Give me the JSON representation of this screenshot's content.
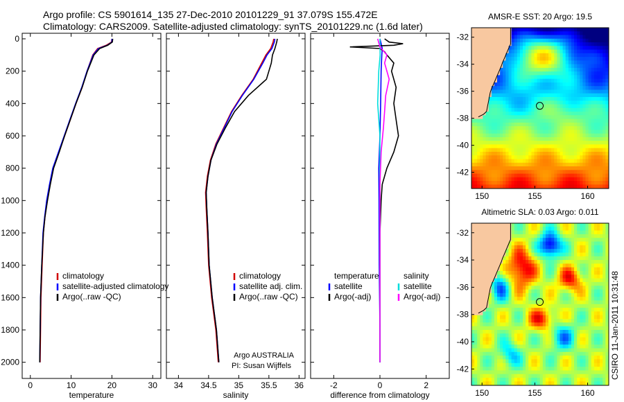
{
  "header": {
    "line1": "Argo profile: CS 5901614_135 27-Dec-2010 20101229_91 37.079S 155.472E",
    "line2": "Climatology: CARS2009. Satellite-adjusted climatology: synTS_20101229.nc (1.6d later)"
  },
  "side_label": "CSIRO 11-Jan-2011 10:31:48",
  "colors": {
    "climatology": "#d00000",
    "satellite": "#0000ff",
    "argo": "#000000",
    "argo_sal_diff": "#ff00ff",
    "sat_sal_diff": "#00dddd",
    "land": "#f8c8a0"
  },
  "chart_data": [
    {
      "type": "line",
      "id": "temperature",
      "xlabel": "temperature",
      "xlim": [
        -2,
        32
      ],
      "xticks": [
        0,
        10,
        20,
        30
      ],
      "ylim": [
        0,
        2100
      ],
      "yticks": [
        0,
        200,
        400,
        600,
        800,
        1000,
        1200,
        1400,
        1600,
        1800,
        2000
      ],
      "y_reversed": true,
      "legend": [
        "climatology",
        "satellite-adjusted climatology",
        "Argo(..raw -QC)"
      ],
      "series": [
        {
          "name": "climatology",
          "color": "#d00000",
          "x": [
            20,
            19.9,
            18.6,
            16.5,
            15.3,
            13.9,
            12.7,
            11.2,
            9.8,
            8.4,
            7.0,
            5.6,
            4.8,
            4.1,
            3.6,
            3.2,
            2.9,
            2.6,
            2.4
          ],
          "y": [
            0,
            20,
            40,
            60,
            100,
            200,
            300,
            400,
            500,
            600,
            700,
            800,
            900,
            1000,
            1100,
            1200,
            1400,
            1600,
            2000
          ]
        },
        {
          "name": "satellite-adjusted climatology",
          "color": "#0000ff",
          "x": [
            20,
            20,
            18.9,
            16.7,
            15.4,
            13.9,
            12.6,
            11.1,
            9.7,
            8.3,
            6.9,
            5.5,
            4.7,
            4.0,
            3.5,
            3.1,
            2.8,
            2.5,
            2.3
          ],
          "y": [
            0,
            20,
            40,
            60,
            100,
            200,
            300,
            400,
            500,
            600,
            700,
            800,
            900,
            1000,
            1100,
            1200,
            1400,
            1600,
            2000
          ]
        },
        {
          "name": "Argo(..raw -QC)",
          "color": "#000000",
          "x": [
            20.2,
            20.1,
            19.0,
            17.0,
            15.6,
            14.0,
            12.7,
            11.2,
            9.8,
            8.4,
            7.1,
            5.7,
            4.9,
            4.2,
            3.6,
            3.2,
            2.8,
            2.5,
            2.3
          ],
          "y": [
            0,
            20,
            40,
            60,
            100,
            200,
            300,
            400,
            500,
            600,
            700,
            800,
            900,
            1000,
            1100,
            1200,
            1400,
            1600,
            2000
          ]
        }
      ]
    },
    {
      "type": "line",
      "id": "salinity",
      "xlabel": "salinity",
      "xlim": [
        33.8,
        36.1
      ],
      "xticks": [
        34,
        34.5,
        35,
        35.5,
        36
      ],
      "ylim": [
        0,
        2100
      ],
      "y_reversed": true,
      "legend": [
        "climatology",
        "satellite adj. clim.",
        "Argo(..raw -QC)"
      ],
      "annotation": [
        "Argo AUSTRALIA",
        "PI: Susan Wijffels"
      ],
      "series": [
        {
          "name": "climatology",
          "color": "#d00000",
          "x": [
            35.58,
            35.57,
            35.53,
            35.45,
            35.38,
            35.24,
            35.05,
            34.88,
            34.75,
            34.62,
            34.53,
            34.48,
            34.45,
            34.46,
            34.48,
            34.5,
            34.55,
            34.62,
            34.66
          ],
          "y": [
            0,
            20,
            60,
            100,
            150,
            250,
            350,
            450,
            550,
            650,
            750,
            850,
            950,
            1050,
            1200,
            1400,
            1600,
            1800,
            2000
          ]
        },
        {
          "name": "satellite adj. clim.",
          "color": "#0000ff",
          "x": [
            35.6,
            35.59,
            35.55,
            35.47,
            35.4,
            35.25,
            35.06,
            34.89,
            34.76,
            34.63,
            34.54,
            34.49,
            34.46,
            34.47,
            34.49,
            34.51,
            34.56,
            34.63,
            34.67
          ],
          "y": [
            0,
            20,
            60,
            100,
            150,
            250,
            350,
            450,
            550,
            650,
            750,
            850,
            950,
            1050,
            1200,
            1400,
            1600,
            1800,
            2000
          ]
        },
        {
          "name": "Argo(..raw -QC)",
          "color": "#000000",
          "x": [
            35.64,
            35.63,
            35.6,
            35.56,
            35.54,
            35.46,
            35.16,
            34.93,
            34.78,
            34.64,
            34.54,
            34.49,
            34.46,
            34.47,
            34.49,
            34.51,
            34.56,
            34.63,
            34.67
          ],
          "y": [
            0,
            20,
            60,
            100,
            150,
            250,
            350,
            450,
            550,
            650,
            750,
            850,
            950,
            1050,
            1200,
            1400,
            1600,
            1800,
            2000
          ]
        }
      ]
    },
    {
      "type": "line",
      "id": "difference",
      "xlabel": "difference from climatology",
      "xlim": [
        -3,
        3
      ],
      "xticks": [
        -2,
        0,
        2
      ],
      "ylim": [
        0,
        2100
      ],
      "y_reversed": true,
      "legend_columns": [
        {
          "heading": "temperature",
          "items": [
            "satellite",
            "Argo(-adj)"
          ]
        },
        {
          "heading": "salinity",
          "items": [
            "satellite",
            "Argo(-adj)"
          ]
        }
      ],
      "series": [
        {
          "name": "temperature satellite",
          "color": "#0000ff",
          "x": [
            0,
            0.05,
            0.1,
            0.08,
            0.05,
            0.03,
            0,
            -0.05,
            -0.04,
            -0.03,
            0,
            0
          ],
          "y": [
            0,
            30,
            60,
            100,
            200,
            400,
            600,
            800,
            1000,
            1400,
            1800,
            2000
          ]
        },
        {
          "name": "temperature Argo(-adj)",
          "color": "#000000",
          "x": [
            0.2,
            0.4,
            1.0,
            0.6,
            -1.3,
            0.0,
            0.2,
            0.3,
            0.6,
            0.5,
            0.7,
            0.6,
            0.7,
            0.8,
            0.6,
            0.3,
            0.1,
            0.05,
            0.0,
            0.0
          ],
          "y": [
            0,
            20,
            30,
            40,
            50,
            60,
            80,
            100,
            150,
            200,
            300,
            400,
            500,
            600,
            700,
            800,
            900,
            1000,
            1200,
            2000
          ]
        },
        {
          "name": "salinity satellite",
          "color": "#00dddd",
          "x": [
            0,
            0.01,
            -0.05,
            -0.1,
            0.0,
            0.0,
            0.0,
            0.0
          ],
          "y": [
            0,
            100,
            200,
            400,
            600,
            800,
            1200,
            2000
          ]
        },
        {
          "name": "salinity Argo(-adj)",
          "color": "#ff00ff",
          "x": [
            -0.1,
            0.0,
            0.3,
            0.2,
            0.4,
            0.25,
            0.2,
            0.15,
            0.05,
            0.0,
            0.0,
            0.0
          ],
          "y": [
            0,
            50,
            100,
            150,
            250,
            350,
            450,
            550,
            700,
            900,
            1300,
            2000
          ]
        }
      ]
    },
    {
      "type": "heatmap",
      "id": "sst-map",
      "title": "AMSR-E SST: 20 Argo: 19.5",
      "xlim": [
        149,
        162
      ],
      "ylim": [
        -43.2,
        -31.3
      ],
      "xticks": [
        150,
        155,
        160
      ],
      "yticks": [
        -32,
        -34,
        -36,
        -38,
        -40,
        -42
      ],
      "argo_position": {
        "lon": 155.47,
        "lat": -37.08
      }
    },
    {
      "type": "heatmap",
      "id": "sla-map",
      "title": "Altimetric SLA: 0.03 Argo: 0.011",
      "xlim": [
        149,
        162
      ],
      "ylim": [
        -43.2,
        -31.3
      ],
      "xticks": [
        150,
        155,
        160
      ],
      "yticks": [
        -32,
        -34,
        -36,
        -38,
        -40,
        -42
      ],
      "argo_position": {
        "lon": 155.47,
        "lat": -37.08
      }
    }
  ]
}
